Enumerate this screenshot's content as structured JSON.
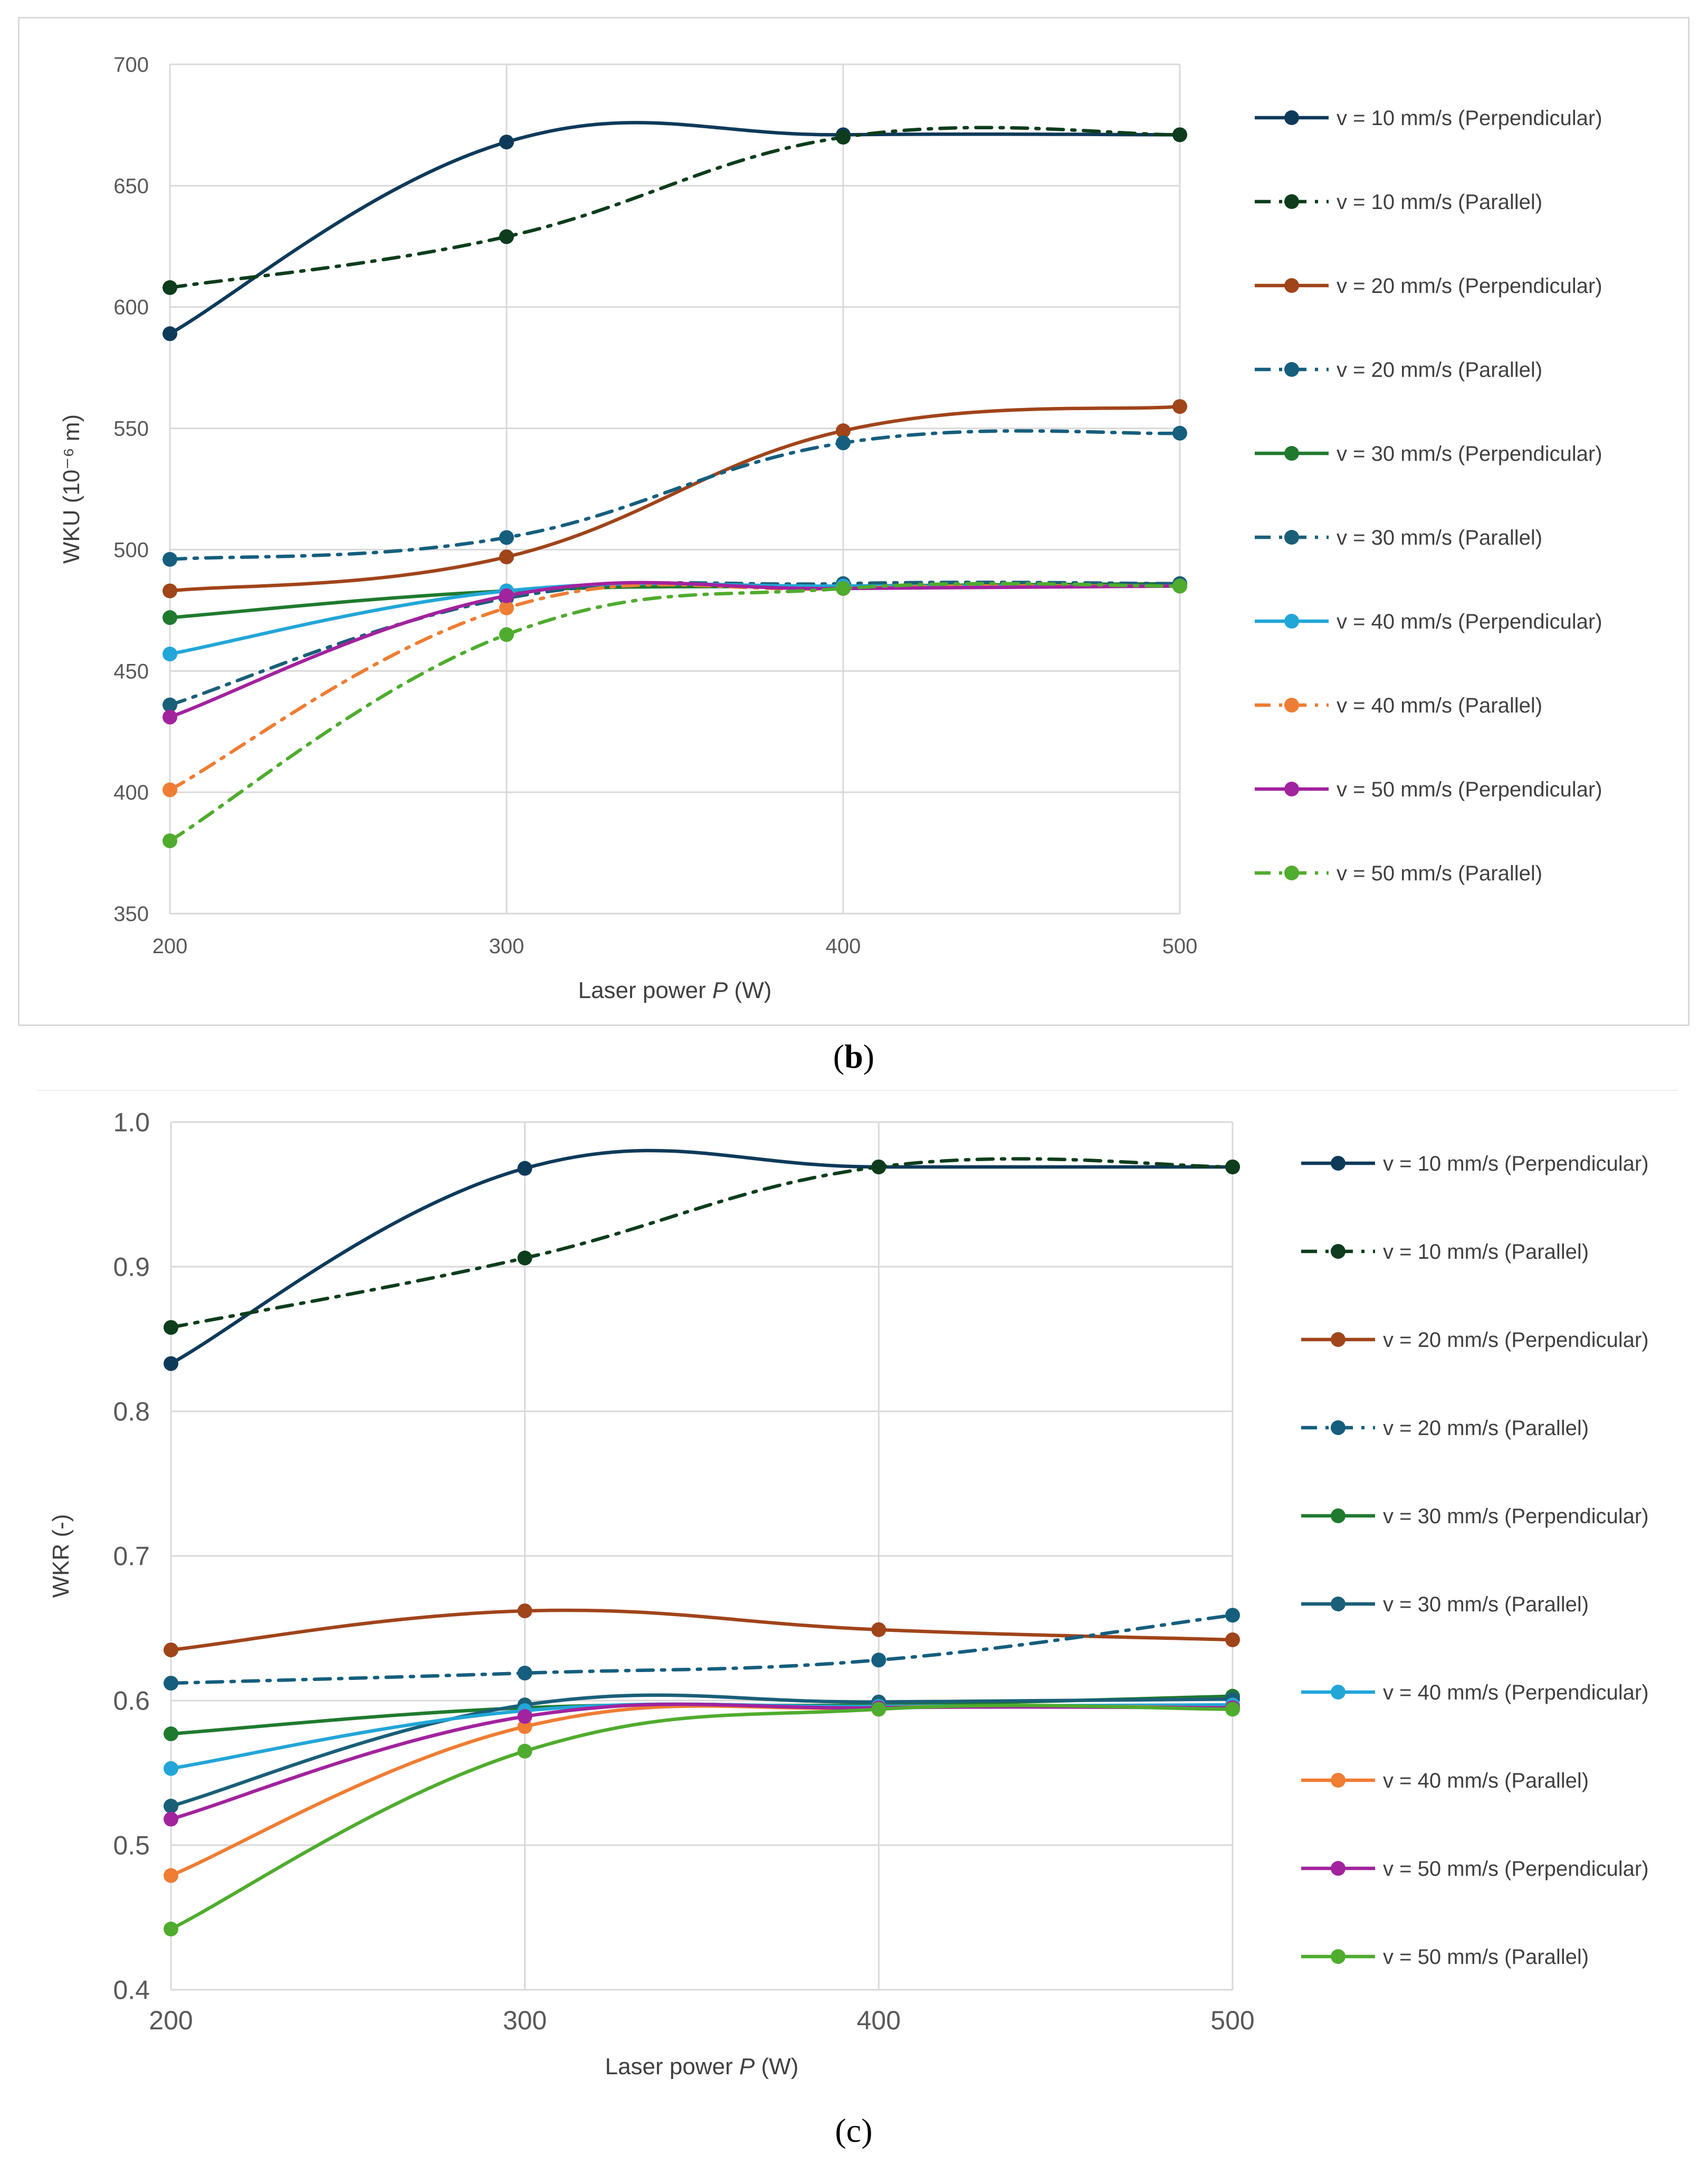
{
  "captions": {
    "b": "b",
    "c": "c"
  },
  "chart_data": [
    {
      "type": "line",
      "panel": "b",
      "xlabel": "Laser power",
      "xlabel_var": "P",
      "xlabel_unit": "(W)",
      "ylabel": "WKU (10⁻⁶ m)",
      "x": [
        200,
        300,
        400,
        500
      ],
      "xticks": [
        "200",
        "300",
        "400",
        "500"
      ],
      "ylim": [
        350,
        700
      ],
      "yticks": [
        350,
        400,
        450,
        500,
        550,
        600,
        650,
        700
      ],
      "grid": true,
      "legend_position": "right",
      "series": [
        {
          "name": "v = 10 mm/s (Perpendicular)",
          "values": [
            589,
            668,
            671,
            671
          ],
          "color": "#0e3a5a",
          "dash": "solid"
        },
        {
          "name": "v = 10 mm/s (Parallel)",
          "values": [
            608,
            629,
            670,
            671
          ],
          "color": "#0d3d1c",
          "dash": "dashdot"
        },
        {
          "name": "v = 20 mm/s (Perpendicular)",
          "values": [
            483,
            497,
            549,
            559
          ],
          "color": "#a0441a",
          "dash": "solid"
        },
        {
          "name": "v = 20 mm/s (Parallel)",
          "values": [
            496,
            505,
            544,
            548
          ],
          "color": "#155e7e",
          "dash": "dashdot"
        },
        {
          "name": "v = 30 mm/s (Perpendicular)",
          "values": [
            472,
            483,
            485,
            486
          ],
          "color": "#1f7a2e",
          "dash": "solid"
        },
        {
          "name": "v = 30 mm/s (Parallel)",
          "values": [
            436,
            480,
            486,
            486
          ],
          "color": "#1a5f78",
          "dash": "dashdot"
        },
        {
          "name": "v = 40 mm/s (Perpendicular)",
          "values": [
            457,
            483,
            485,
            485
          ],
          "color": "#22a6d8",
          "dash": "solid"
        },
        {
          "name": "v = 40 mm/s (Parallel)",
          "values": [
            401,
            476,
            484,
            485
          ],
          "color": "#ef7d33",
          "dash": "dashdot"
        },
        {
          "name": "v = 50 mm/s (Perpendicular)",
          "values": [
            431,
            481,
            484,
            485
          ],
          "color": "#a2239e",
          "dash": "solid"
        },
        {
          "name": "v = 50 mm/s (Parallel)",
          "values": [
            380,
            465,
            484,
            485
          ],
          "color": "#4fac2e",
          "dash": "dashdot"
        }
      ]
    },
    {
      "type": "line",
      "panel": "c",
      "xlabel": "Laser power",
      "xlabel_var": "P",
      "xlabel_unit": "(W)",
      "ylabel": "WKR (-)",
      "x": [
        200,
        300,
        400,
        500
      ],
      "xticks": [
        "200",
        "300",
        "400",
        "500"
      ],
      "ylim": [
        0.4,
        1.0
      ],
      "yticks": [
        0.4,
        0.5,
        0.6,
        0.7,
        0.8,
        0.9,
        1.0
      ],
      "ytick_labels": [
        "0.4",
        "0.5",
        "0.6",
        "0.7",
        "0.8",
        "0.9",
        "1.0"
      ],
      "grid": true,
      "legend_position": "right",
      "series": [
        {
          "name": "v = 10 mm/s (Perpendicular)",
          "values": [
            0.833,
            0.968,
            0.969,
            0.969
          ],
          "color": "#0e3a5a",
          "dash": "solid"
        },
        {
          "name": "v = 10 mm/s (Parallel)",
          "values": [
            0.858,
            0.906,
            0.969,
            0.969
          ],
          "color": "#0d3d1c",
          "dash": "dashdot"
        },
        {
          "name": "v = 20 mm/s (Perpendicular)",
          "values": [
            0.635,
            0.662,
            0.649,
            0.642
          ],
          "color": "#a0441a",
          "dash": "solid"
        },
        {
          "name": "v = 20 mm/s (Parallel)",
          "values": [
            0.612,
            0.619,
            0.628,
            0.659
          ],
          "color": "#155e7e",
          "dash": "dashdot"
        },
        {
          "name": "v = 30 mm/s (Perpendicular)",
          "values": [
            0.577,
            0.595,
            0.597,
            0.603
          ],
          "color": "#1f7a2e",
          "dash": "solid"
        },
        {
          "name": "v = 30 mm/s (Parallel)",
          "values": [
            0.527,
            0.597,
            0.599,
            0.601
          ],
          "color": "#1a5f78",
          "dash": "solid"
        },
        {
          "name": "v = 40 mm/s (Perpendicular)",
          "values": [
            0.553,
            0.593,
            0.596,
            0.597
          ],
          "color": "#22a6d8",
          "dash": "solid"
        },
        {
          "name": "v = 40 mm/s (Parallel)",
          "values": [
            0.479,
            0.582,
            0.595,
            0.595
          ],
          "color": "#ef7d33",
          "dash": "solid"
        },
        {
          "name": "v = 50 mm/s (Perpendicular)",
          "values": [
            0.518,
            0.589,
            0.595,
            0.595
          ],
          "color": "#a2239e",
          "dash": "solid"
        },
        {
          "name": "v = 50 mm/s (Parallel)",
          "values": [
            0.442,
            0.565,
            0.594,
            0.594
          ],
          "color": "#4fac2e",
          "dash": "solid"
        }
      ]
    }
  ]
}
